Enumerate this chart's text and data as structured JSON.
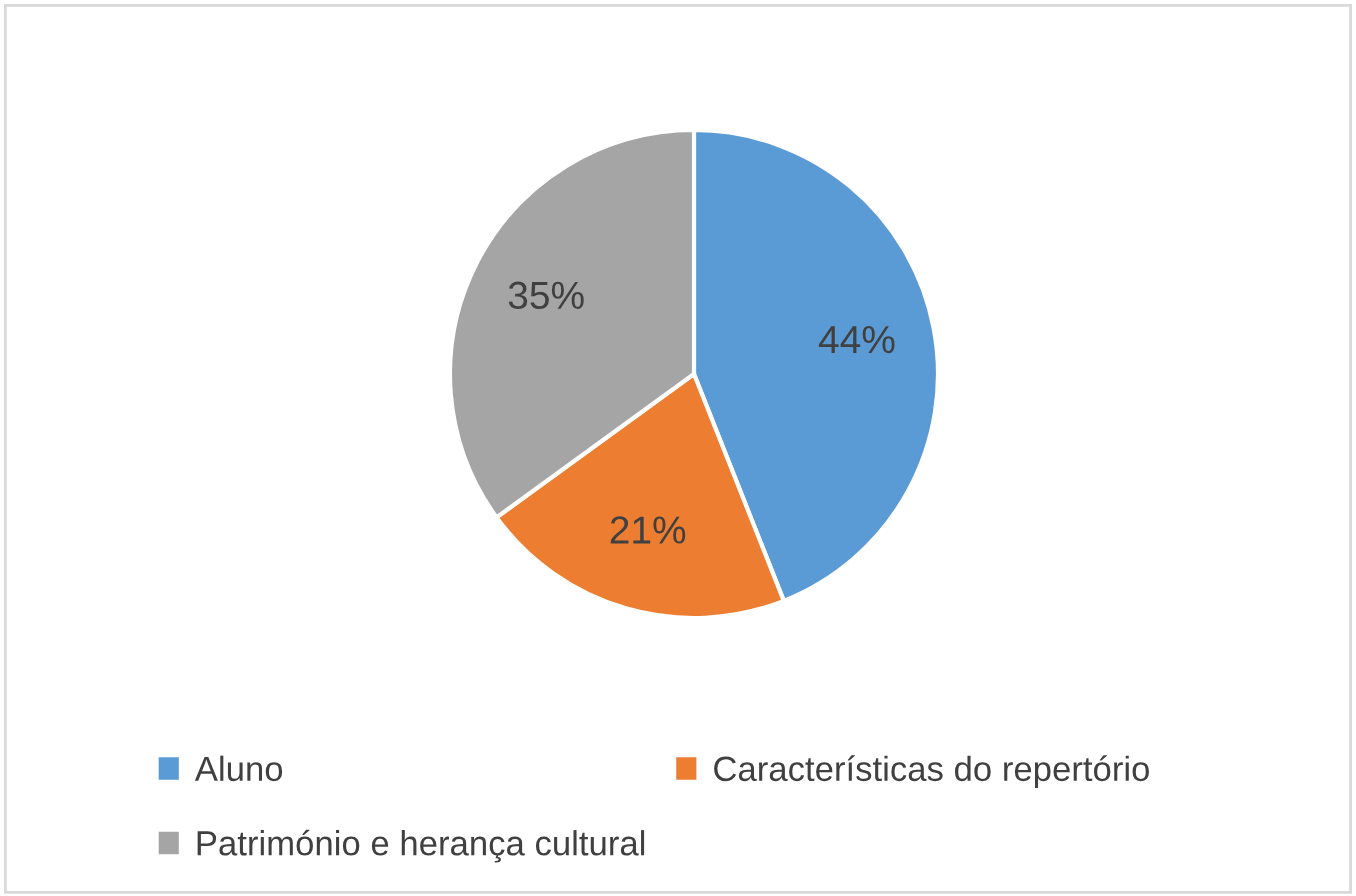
{
  "chart_data": {
    "type": "pie",
    "categories": [
      "Aluno",
      "Características do repertório",
      "Património e herança cultural"
    ],
    "values": [
      44,
      21,
      35
    ],
    "value_labels": [
      "44%",
      "21%",
      "35%"
    ],
    "colors": [
      "#5b9bd5",
      "#ed7d31",
      "#a5a5a5"
    ],
    "legend": "bottom"
  }
}
